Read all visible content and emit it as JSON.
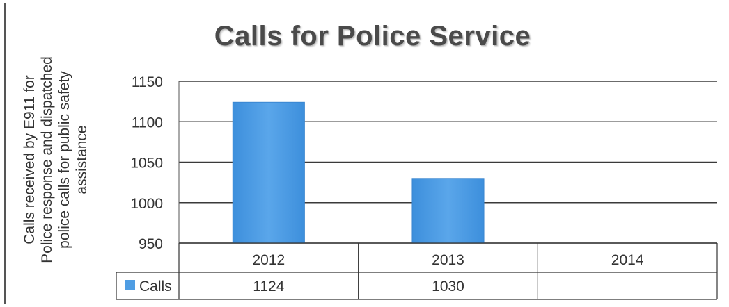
{
  "chart_data": {
    "type": "bar",
    "title": "Calls for Police Service",
    "ylabel": "Calls received by E911 for Police response and dispatched police calls for public safety assistance",
    "xlabel": "",
    "categories": [
      "2012",
      "2013",
      "2014"
    ],
    "series": [
      {
        "name": "Calls",
        "values": [
          1124,
          1030,
          null
        ],
        "color": "#4f9de3"
      }
    ],
    "table_values": [
      "1124",
      "1030",
      ""
    ],
    "ylim": [
      950,
      1150
    ],
    "yticks": [
      "950",
      "1000",
      "1050",
      "1100",
      "1150"
    ],
    "grid": true,
    "legend": "data-table"
  }
}
